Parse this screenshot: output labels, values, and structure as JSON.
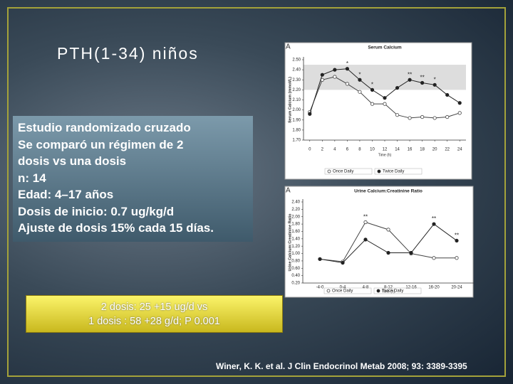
{
  "slide": {
    "title": "PTH(1-34) niños",
    "bullets": [
      "Estudio randomizado cruzado",
      "Se comparó un régimen de 2",
      "dosis vs una dosis",
      "n: 14",
      "Edad: 4–17 años",
      "Dosis de inicio:  0.7  ug/kg/d",
      "Ajuste de dosis 15% cada 15 días."
    ],
    "highlight": [
      "2 dosis: 25 +15 ug/d vs",
      "1 dosis : 58 +28 g/d; P  0.001"
    ],
    "citation": "Winer, K. K. et al. J Clin Endocrinol Metab 2008; 93: 3389-3395"
  },
  "chart_data": [
    {
      "type": "line",
      "panel": "A",
      "title": "Serum Calcium",
      "x_label": "Time (h)",
      "y_label": "Serum Calcium (mmol/L)",
      "x": [
        0,
        2,
        4,
        6,
        8,
        10,
        12,
        14,
        16,
        18,
        20,
        22,
        24
      ],
      "xlim": [
        -1,
        25
      ],
      "xticks": [
        0,
        2,
        4,
        6,
        8,
        10,
        12,
        14,
        16,
        18,
        20,
        22,
        24
      ],
      "ylim": [
        1.7,
        2.5
      ],
      "yticks": [
        {
          "value": 1.7,
          "label": "1.70"
        },
        {
          "value": 1.8,
          "label": "1.80"
        },
        {
          "value": 1.9,
          "label": "1.90"
        },
        {
          "value": 2.0,
          "label": "2.00"
        },
        {
          "value": 2.1,
          "label": "2.10"
        },
        {
          "value": 2.2,
          "label": "2.20"
        },
        {
          "value": 2.3,
          "label": "2.30"
        },
        {
          "value": 2.4,
          "label": "2.40"
        },
        {
          "value": 2.5,
          "label": "2.50"
        }
      ],
      "shaded_range": [
        2.2,
        2.45
      ],
      "series": [
        {
          "name": "Once Daily",
          "color": "#444",
          "marker": "open",
          "values": [
            1.98,
            2.3,
            2.33,
            2.26,
            2.18,
            2.06,
            2.06,
            1.95,
            1.92,
            1.93,
            1.92,
            1.93,
            1.97
          ]
        },
        {
          "name": "Twice Daily",
          "color": "#222",
          "marker": "filled",
          "values": [
            1.96,
            2.35,
            2.4,
            2.41,
            2.3,
            2.2,
            2.12,
            2.22,
            2.3,
            2.27,
            2.25,
            2.15,
            2.07
          ]
        }
      ],
      "annotations": [
        {
          "text": "*",
          "x": 6
        },
        {
          "text": "*",
          "x": 8
        },
        {
          "text": "*",
          "x": 10
        },
        {
          "text": "**",
          "x": 16
        },
        {
          "text": "**",
          "x": 18
        },
        {
          "text": "*",
          "x": 20
        }
      ]
    },
    {
      "type": "line",
      "panel": "A",
      "title": "Urine Calcium:Creatinine Ratio",
      "x_label": "Time (h)",
      "y_label": "Urine Calcium:Creatinine Ratio",
      "categories": [
        "-4-0",
        "0-4",
        "4-8",
        "8-12",
        "12-16",
        "16-20",
        "20-24"
      ],
      "ylim": [
        0.2,
        2.4
      ],
      "yticks": [
        {
          "value": 0.2,
          "label": "0.20"
        },
        {
          "value": 0.4,
          "label": "0.40"
        },
        {
          "value": 0.6,
          "label": "0.60"
        },
        {
          "value": 0.8,
          "label": "0.80"
        },
        {
          "value": 1.0,
          "label": "1.00"
        },
        {
          "value": 1.2,
          "label": "1.20"
        },
        {
          "value": 1.4,
          "label": "1.40"
        },
        {
          "value": 1.6,
          "label": "1.60"
        },
        {
          "value": 1.8,
          "label": "1.80"
        },
        {
          "value": 2.0,
          "label": "2.00"
        },
        {
          "value": 2.2,
          "label": "2.20"
        },
        {
          "value": 2.4,
          "label": "2.40"
        }
      ],
      "series": [
        {
          "name": "Once Daily",
          "color": "#444",
          "marker": "open",
          "values": [
            0.85,
            0.78,
            1.85,
            1.65,
            1.0,
            0.88,
            0.88
          ]
        },
        {
          "name": "Twice Daily",
          "color": "#222",
          "marker": "filled",
          "values": [
            0.85,
            0.75,
            1.38,
            1.02,
            1.02,
            1.8,
            1.35
          ]
        }
      ],
      "annotations": [
        {
          "text": "**",
          "x": 2
        },
        {
          "text": "**",
          "x": 5
        },
        {
          "text": "**",
          "x": 6
        }
      ]
    }
  ]
}
